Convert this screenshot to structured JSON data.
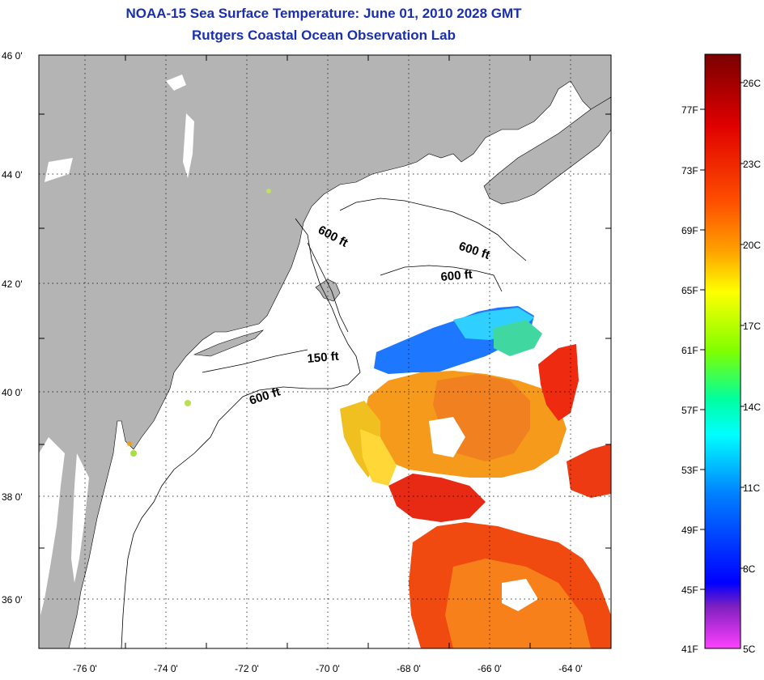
{
  "title": {
    "line1": "NOAA-15 Sea Surface Temperature:  June 01, 2010 2028 GMT",
    "line2": "Rutgers Coastal Ocean Observation Lab"
  },
  "map": {
    "lat_labels": [
      "46 0'",
      "44 0'",
      "42 0'",
      "40 0'",
      "38 0'",
      "36 0'"
    ],
    "lon_labels": [
      "-76 0'",
      "-74 0'",
      "-72 0'",
      "-70 0'",
      "-68 0'",
      "-66 0'",
      "-64 0'"
    ],
    "contour_labels": [
      "600 ft",
      "600 ft",
      "600 ft",
      "150 ft",
      "600 ft"
    ],
    "colors": {
      "land": "#b4b4b4",
      "cloud": "#ffffff",
      "grid": "#000000"
    }
  },
  "colorbar": {
    "fahrenheit_labels": [
      "77F",
      "73F",
      "69F",
      "65F",
      "61F",
      "57F",
      "53F",
      "49F",
      "45F",
      "41F"
    ],
    "celsius_labels": [
      "26C",
      "23C",
      "20C",
      "17C",
      "14C",
      "11C",
      "8C",
      "5C"
    ],
    "gradient": [
      "#7a0000",
      "#ff0000",
      "#ff8000",
      "#ffff00",
      "#7fff00",
      "#00ffff",
      "#007fff",
      "#0000ff",
      "#8000c0",
      "#ff00ff"
    ]
  }
}
